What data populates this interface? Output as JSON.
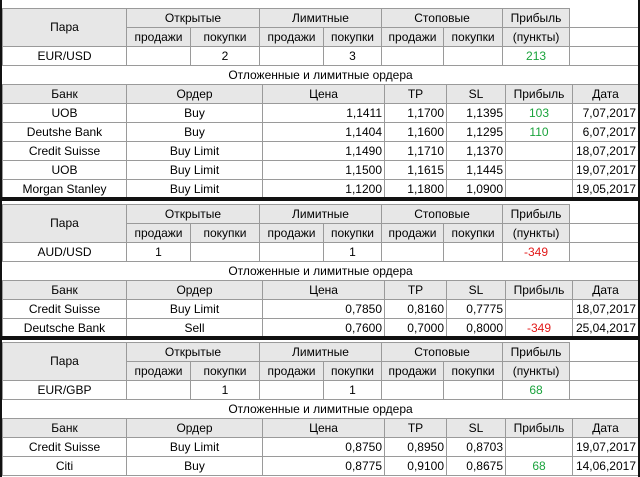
{
  "h": {
    "pair": "Пара",
    "open": "Открытые",
    "limit": "Лимитные",
    "stop": "Стоповые",
    "profit": "Прибыль",
    "sell": "продажи",
    "buy": "покупки",
    "points": "(пункты)",
    "orders": "Отложенные и лимитные ордера",
    "bank": "Банк",
    "order": "Ордер",
    "price": "Цена",
    "tp": "TP",
    "sl": "SL",
    "date": "Дата"
  },
  "blocks": [
    {
      "pair": "EUR/USD",
      "open_sell": "",
      "open_buy": "2",
      "limit_sell": "",
      "limit_buy": "3",
      "stop_sell": "",
      "stop_buy": "",
      "profit": "213",
      "profit_sign": "pos",
      "rows": [
        {
          "bank": "UOB",
          "order": "Buy",
          "price": "1,1411",
          "tp": "1,1700",
          "sl": "1,1395",
          "profit": "103",
          "sign": "pos",
          "date": "7,07,2017"
        },
        {
          "bank": "Deutshe Bank",
          "order": "Buy",
          "price": "1,1404",
          "tp": "1,1600",
          "sl": "1,1295",
          "profit": "110",
          "sign": "pos",
          "date": "6,07,2017"
        },
        {
          "bank": "Credit Suisse",
          "order": "Buy Limit",
          "price": "1,1490",
          "tp": "1,1710",
          "sl": "1,1370",
          "profit": "",
          "sign": "",
          "date": "18,07,2017"
        },
        {
          "bank": "UOB",
          "order": "Buy Limit",
          "price": "1,1500",
          "tp": "1,1615",
          "sl": "1,1445",
          "profit": "",
          "sign": "",
          "date": "19,07,2017"
        },
        {
          "bank": "Morgan Stanley",
          "order": "Buy Limit",
          "price": "1,1200",
          "tp": "1,1800",
          "sl": "1,0900",
          "profit": "",
          "sign": "",
          "date": "19,05,2017"
        }
      ]
    },
    {
      "pair": "AUD/USD",
      "open_sell": "1",
      "open_buy": "",
      "limit_sell": "",
      "limit_buy": "1",
      "stop_sell": "",
      "stop_buy": "",
      "profit": "-349",
      "profit_sign": "neg",
      "rows": [
        {
          "bank": "Credit Suisse",
          "order": "Buy Limit",
          "price": "0,7850",
          "tp": "0,8160",
          "sl": "0,7775",
          "profit": "",
          "sign": "",
          "date": "18,07,2017"
        },
        {
          "bank": "Deutsche Bank",
          "order": "Sell",
          "price": "0,7600",
          "tp": "0,7000",
          "sl": "0,8000",
          "profit": "-349",
          "sign": "neg",
          "date": "25,04,2017"
        }
      ]
    },
    {
      "pair": "EUR/GBP",
      "open_sell": "",
      "open_buy": "1",
      "limit_sell": "",
      "limit_buy": "1",
      "stop_sell": "",
      "stop_buy": "",
      "profit": "68",
      "profit_sign": "pos",
      "rows": [
        {
          "bank": "Credit Suisse",
          "order": "Buy Limit",
          "price": "0,8750",
          "tp": "0,8950",
          "sl": "0,8703",
          "profit": "",
          "sign": "",
          "date": "19,07,2017"
        },
        {
          "bank": "Citi",
          "order": "Buy",
          "price": "0,8775",
          "tp": "0,9100",
          "sl": "0,8675",
          "profit": "68",
          "sign": "pos",
          "date": "14,06,2017"
        }
      ]
    }
  ]
}
